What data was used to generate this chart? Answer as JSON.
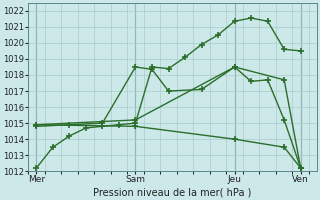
{
  "xlabel": "Pression niveau de la mer( hPa )",
  "ylim": [
    1012,
    1022.5
  ],
  "yticks": [
    1012,
    1013,
    1014,
    1015,
    1016,
    1017,
    1018,
    1019,
    1020,
    1021,
    1022
  ],
  "xtick_labels": [
    "Mer",
    "Sam",
    "Jeu",
    "Ven"
  ],
  "xtick_positions": [
    0,
    12,
    24,
    32
  ],
  "xlim": [
    -1,
    34
  ],
  "bg_color": "#cce8e8",
  "grid_color": "#aacccc",
  "line_color": "#2a6e2a",
  "line_color2": "#2a6e2a",
  "vline_color": "#5a8888",
  "vline_positions": [
    0,
    12,
    24,
    32
  ],
  "line1_x": [
    0,
    2,
    4,
    6,
    8,
    10,
    12,
    14,
    16,
    18,
    20,
    22,
    24,
    26,
    28,
    30,
    32
  ],
  "line1_y": [
    1012.2,
    1013.5,
    1014.2,
    1014.7,
    1014.8,
    1014.9,
    1015.0,
    1018.5,
    1018.4,
    1019.1,
    1019.9,
    1020.5,
    1021.35,
    1021.55,
    1021.35,
    1019.6,
    1019.5
  ],
  "line2_x": [
    0,
    4,
    8,
    12,
    14,
    16,
    20,
    24,
    26,
    28,
    30,
    32
  ],
  "line2_y": [
    1014.8,
    1014.9,
    1015.0,
    1018.5,
    1018.35,
    1017.0,
    1017.1,
    1018.5,
    1017.6,
    1017.7,
    1015.2,
    1012.2
  ],
  "line3_x": [
    0,
    12,
    24,
    30,
    32
  ],
  "line3_y": [
    1014.9,
    1015.2,
    1018.5,
    1017.7,
    1012.2
  ],
  "line4_x": [
    0,
    12,
    24,
    30,
    32
  ],
  "line4_y": [
    1014.9,
    1014.8,
    1014.0,
    1013.5,
    1012.2
  ],
  "figsize": [
    3.2,
    2.0
  ],
  "dpi": 100
}
